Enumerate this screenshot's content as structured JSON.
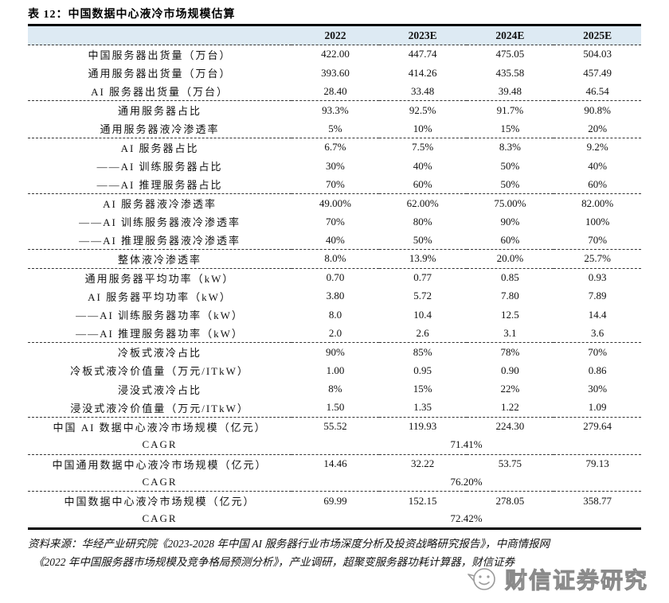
{
  "title": "表 12：中国数据中心液冷市场规模估算",
  "table": {
    "columns": [
      "2022",
      "2023E",
      "2024E",
      "2025E"
    ],
    "rows": [
      {
        "label": "中国服务器出货量（万台）",
        "values": [
          "422.00",
          "447.74",
          "475.05",
          "504.03"
        ]
      },
      {
        "label": "通用服务器出货量（万台）",
        "values": [
          "393.60",
          "414.26",
          "435.58",
          "457.49"
        ]
      },
      {
        "label": "AI 服务器出货量（万台）",
        "values": [
          "28.40",
          "33.48",
          "39.48",
          "46.54"
        ],
        "divider_after": true
      },
      {
        "label": "通用服务器占比",
        "values": [
          "93.3%",
          "92.5%",
          "91.7%",
          "90.8%"
        ]
      },
      {
        "label": "通用服务器液冷渗透率",
        "values": [
          "5%",
          "10%",
          "15%",
          "20%"
        ],
        "divider_after": true
      },
      {
        "label": "AI 服务器占比",
        "values": [
          "6.7%",
          "7.5%",
          "8.3%",
          "9.2%"
        ]
      },
      {
        "label": "——AI 训练服务器占比",
        "values": [
          "30%",
          "40%",
          "50%",
          "40%"
        ]
      },
      {
        "label": "——AI 推理服务器占比",
        "values": [
          "70%",
          "60%",
          "50%",
          "60%"
        ],
        "divider_after": true
      },
      {
        "label": "AI 服务器液冷渗透率",
        "values": [
          "49.00%",
          "62.00%",
          "75.00%",
          "82.00%"
        ]
      },
      {
        "label": "——AI 训练服务器液冷渗透率",
        "values": [
          "70%",
          "80%",
          "90%",
          "100%"
        ]
      },
      {
        "label": "——AI 推理服务器液冷渗透率",
        "values": [
          "40%",
          "50%",
          "60%",
          "70%"
        ],
        "divider_after": true
      },
      {
        "label": "整体液冷渗透率",
        "values": [
          "8.0%",
          "13.9%",
          "20.0%",
          "25.7%"
        ],
        "divider_after": true
      },
      {
        "label": "通用服务器平均功率（kW）",
        "values": [
          "0.70",
          "0.77",
          "0.85",
          "0.93"
        ]
      },
      {
        "label": "AI 服务器平均功率（kW）",
        "values": [
          "3.80",
          "5.72",
          "7.80",
          "7.89"
        ]
      },
      {
        "label": "——AI 训练服务器功率（kW）",
        "values": [
          "8.0",
          "10.4",
          "12.5",
          "14.4"
        ]
      },
      {
        "label": "——AI 推理服务器功率（kW）",
        "values": [
          "2.0",
          "2.6",
          "3.1",
          "3.6"
        ],
        "divider_after": true
      },
      {
        "label": "冷板式液冷占比",
        "values": [
          "90%",
          "85%",
          "78%",
          "70%"
        ]
      },
      {
        "label": "冷板式液冷价值量（万元/ITkW）",
        "values": [
          "1.00",
          "0.95",
          "0.90",
          "0.86"
        ]
      },
      {
        "label": "浸没式液冷占比",
        "values": [
          "8%",
          "15%",
          "22%",
          "30%"
        ]
      },
      {
        "label": "浸没式液冷价值量（万元/ITkW）",
        "values": [
          "1.50",
          "1.35",
          "1.22",
          "1.09"
        ],
        "divider_after": true
      },
      {
        "label": "中国 AI 数据中心液冷市场规模（亿元）",
        "values": [
          "55.52",
          "119.93",
          "224.30",
          "279.64"
        ]
      },
      {
        "label": "CAGR",
        "span_value": "71.41%",
        "divider_after": true
      },
      {
        "label": "中国通用数据中心液冷市场规模（亿元）",
        "values": [
          "14.46",
          "32.22",
          "53.75",
          "79.13"
        ]
      },
      {
        "label": "CAGR",
        "span_value": "76.20%",
        "divider_after": true
      },
      {
        "label": "中国数据中心液冷市场规模（亿元）",
        "values": [
          "69.99",
          "152.15",
          "278.05",
          "358.77"
        ]
      },
      {
        "label": "CAGR",
        "span_value": "72.42%"
      }
    ]
  },
  "source": {
    "line1": "资料来源：华经产业研究院《2023-2028 年中国 AI 服务器行业市场深度分析及投资战略研究报告》，中商情报网",
    "line2": "《2022 年中国服务器市场规模及竞争格局预测分析》，产业调研，超聚变服务器功耗计算器，财信证券"
  },
  "watermark": {
    "label": "财信证券研究",
    "icon": "smiley-face-logo-icon"
  },
  "colors": {
    "header_background": "#ddeaf3",
    "rule_color": "#000000",
    "watermark_gray": "#8a8a8a"
  }
}
